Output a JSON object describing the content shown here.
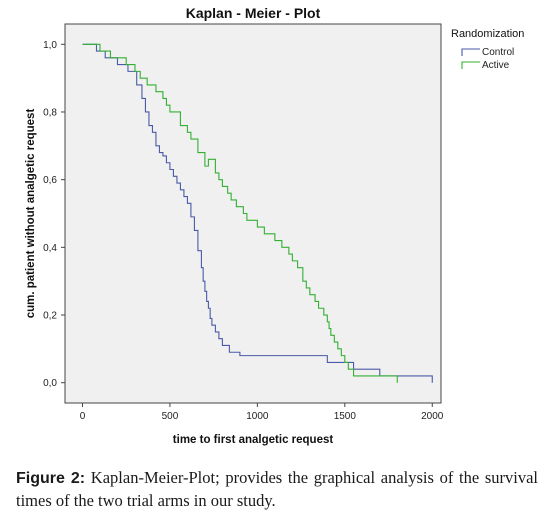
{
  "chart_data": {
    "type": "line",
    "step": true,
    "title": "Kaplan - Meier - Plot",
    "xlabel": "time to first analgetic request",
    "ylabel": "cum. patient without analgetic request",
    "xlim": [
      -100,
      2050
    ],
    "ylim": [
      -0.06,
      1.06
    ],
    "xticks": [
      0,
      500,
      1000,
      1500,
      2000
    ],
    "yticks": [
      0.0,
      0.2,
      0.4,
      0.6,
      0.8,
      1.0
    ],
    "xtick_labels": [
      "0",
      "500",
      "1000",
      "1500",
      "2000"
    ],
    "ytick_labels": [
      "0,0",
      "0,2",
      "0,4",
      "0,6",
      "0,8",
      "1,0"
    ],
    "grid": false,
    "legend": {
      "title": "Randomization",
      "placement": "outside-right-top"
    },
    "series": [
      {
        "name": "Control",
        "color": "#4a5aa8",
        "x": [
          0,
          80,
          130,
          200,
          260,
          310,
          340,
          360,
          380,
          400,
          420,
          440,
          460,
          480,
          500,
          520,
          540,
          560,
          580,
          600,
          620,
          640,
          660,
          680,
          690,
          700,
          710,
          720,
          730,
          740,
          760,
          780,
          800,
          840,
          900,
          1400,
          1550,
          1700,
          2000
        ],
        "y": [
          1.0,
          0.98,
          0.96,
          0.94,
          0.92,
          0.88,
          0.84,
          0.8,
          0.76,
          0.74,
          0.7,
          0.68,
          0.67,
          0.65,
          0.63,
          0.61,
          0.59,
          0.57,
          0.55,
          0.53,
          0.49,
          0.45,
          0.39,
          0.34,
          0.3,
          0.27,
          0.24,
          0.22,
          0.19,
          0.17,
          0.15,
          0.13,
          0.11,
          0.09,
          0.08,
          0.06,
          0.04,
          0.02,
          0.0
        ]
      },
      {
        "name": "Active",
        "color": "#33b033",
        "x": [
          0,
          100,
          160,
          250,
          300,
          330,
          370,
          420,
          460,
          480,
          500,
          560,
          600,
          620,
          660,
          700,
          720,
          760,
          780,
          800,
          830,
          850,
          880,
          920,
          940,
          1000,
          1040,
          1100,
          1140,
          1180,
          1200,
          1230,
          1260,
          1280,
          1300,
          1330,
          1350,
          1380,
          1400,
          1410,
          1420,
          1440,
          1460,
          1480,
          1500,
          1520,
          1550,
          1650,
          1800
        ],
        "y": [
          1.0,
          0.98,
          0.96,
          0.94,
          0.92,
          0.9,
          0.88,
          0.86,
          0.84,
          0.82,
          0.8,
          0.76,
          0.74,
          0.72,
          0.68,
          0.64,
          0.66,
          0.62,
          0.6,
          0.58,
          0.56,
          0.54,
          0.52,
          0.5,
          0.48,
          0.46,
          0.44,
          0.42,
          0.4,
          0.38,
          0.36,
          0.34,
          0.3,
          0.28,
          0.26,
          0.24,
          0.22,
          0.2,
          0.18,
          0.16,
          0.14,
          0.12,
          0.1,
          0.08,
          0.06,
          0.04,
          0.02,
          0.02,
          0.0
        ]
      }
    ]
  },
  "caption": {
    "label": "Figure 2:",
    "text": " Kaplan-Meier-Plot; provides the graphical analysis of the survival times of the two trial arms in our study."
  }
}
